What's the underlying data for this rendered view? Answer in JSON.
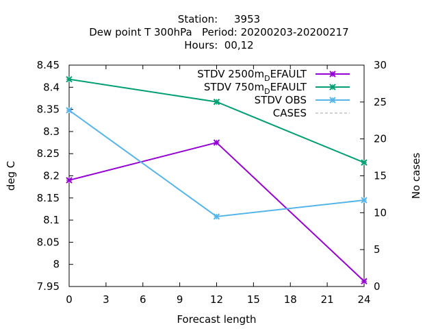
{
  "chart_data": {
    "type": "line",
    "title_lines": [
      "Station:     3953",
      "Dew point T 300hPa   Period: 20200203-20200217",
      "Hours:  00,12"
    ],
    "xlabel": "Forecast length",
    "ylabel": "deg C",
    "y2label": "No cases",
    "xlim": [
      0,
      24
    ],
    "ylim": [
      7.95,
      8.45
    ],
    "y2lim": [
      0,
      30
    ],
    "xticks": [
      "0",
      "3",
      "6",
      "9",
      "12",
      "15",
      "18",
      "21",
      "24"
    ],
    "yticks": [
      "7.95",
      "8",
      "8.05",
      "8.1",
      "8.15",
      "8.2",
      "8.25",
      "8.3",
      "8.35",
      "8.4",
      "8.45"
    ],
    "y2ticks": [
      "0",
      "5",
      "10",
      "15",
      "20",
      "25",
      "30"
    ],
    "grid": false,
    "legend_position": "top-right",
    "series": [
      {
        "name_main": "STDV 2500m",
        "name_sub": "D",
        "name_rest": "EFAULT",
        "color": "#9400d3",
        "marker": "x",
        "x": [
          0,
          12,
          24
        ],
        "values": [
          8.19,
          8.275,
          7.962
        ]
      },
      {
        "name_main": "STDV 750m",
        "name_sub": "D",
        "name_rest": "EFAULT",
        "color": "#009e73",
        "marker": "x",
        "x": [
          0,
          12,
          24
        ],
        "values": [
          8.418,
          8.367,
          8.23
        ]
      },
      {
        "name_main": "STDV OBS",
        "name_sub": "",
        "name_rest": "",
        "color": "#56b4e9",
        "marker": "x",
        "x": [
          0,
          12,
          24
        ],
        "values": [
          8.348,
          8.108,
          8.145
        ]
      },
      {
        "name_main": "CASES",
        "name_sub": "",
        "name_rest": "",
        "color": "#a0a0a0",
        "marker": "none",
        "dashed": true,
        "x": [],
        "values": []
      }
    ]
  }
}
